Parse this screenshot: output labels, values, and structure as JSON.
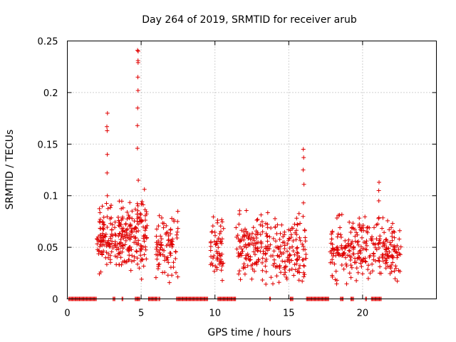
{
  "chart_data": {
    "type": "scatter",
    "title": "Day 264 of 2019, SRMTID for receiver arub",
    "xlabel": "GPS time / hours",
    "ylabel": "SRMTID / TECUs",
    "xlim": [
      0,
      25
    ],
    "ylim": [
      0,
      0.25
    ],
    "xticks": [
      0,
      5,
      10,
      15,
      20
    ],
    "yticks": [
      0,
      0.05,
      0.1,
      0.15,
      0.2,
      0.25
    ],
    "xtick_labels": [
      "0",
      "5",
      "10",
      "15",
      "20"
    ],
    "ytick_labels": [
      "0",
      "0.05",
      "0.1",
      "0.15",
      "0.2",
      "0.25"
    ],
    "grid": true,
    "marker": "+",
    "color": "#e00000",
    "clusters": [
      {
        "x": [
          2.0,
          3.1
        ],
        "y_center": 0.06,
        "y_spread": 0.03,
        "n": 90
      },
      {
        "x": [
          3.2,
          4.4
        ],
        "y_center": 0.06,
        "y_spread": 0.03,
        "n": 110
      },
      {
        "x": [
          4.5,
          5.4
        ],
        "y_center": 0.065,
        "y_spread": 0.035,
        "n": 80
      },
      {
        "x": [
          6.0,
          7.5
        ],
        "y_center": 0.05,
        "y_spread": 0.025,
        "n": 90
      },
      {
        "x": [
          9.7,
          10.6
        ],
        "y_center": 0.05,
        "y_spread": 0.03,
        "n": 60
      },
      {
        "x": [
          11.3,
          13.3
        ],
        "y_center": 0.05,
        "y_spread": 0.03,
        "n": 120
      },
      {
        "x": [
          13.4,
          15.6
        ],
        "y_center": 0.045,
        "y_spread": 0.03,
        "n": 120
      },
      {
        "x": [
          15.5,
          16.2
        ],
        "y_center": 0.05,
        "y_spread": 0.035,
        "n": 40
      },
      {
        "x": [
          17.8,
          19.8
        ],
        "y_center": 0.05,
        "y_spread": 0.03,
        "n": 120
      },
      {
        "x": [
          19.8,
          21.5
        ],
        "y_center": 0.05,
        "y_spread": 0.03,
        "n": 90
      },
      {
        "x": [
          21.5,
          22.6
        ],
        "y_center": 0.045,
        "y_spread": 0.025,
        "n": 70
      }
    ],
    "spikes": [
      {
        "x": 2.7,
        "y": [
          0.1,
          0.122,
          0.14,
          0.163,
          0.167,
          0.18
        ]
      },
      {
        "x": 4.78,
        "y": [
          0.115,
          0.146,
          0.168,
          0.185,
          0.202,
          0.215,
          0.229,
          0.231,
          0.24,
          0.241
        ]
      },
      {
        "x": 16.0,
        "y": [
          0.08,
          0.093,
          0.111,
          0.125,
          0.137,
          0.145
        ]
      },
      {
        "x": 21.1,
        "y": [
          0.095,
          0.105,
          0.113
        ]
      }
    ],
    "zero_segments": [
      [
        0.1,
        2.0
      ],
      [
        3.1,
        3.25
      ],
      [
        3.7,
        3.8
      ],
      [
        4.6,
        4.9
      ],
      [
        5.5,
        6.1
      ],
      [
        6.2,
        6.3
      ],
      [
        7.4,
        9.5
      ],
      [
        10.2,
        11.4
      ],
      [
        13.7,
        13.8
      ],
      [
        15.1,
        15.3
      ],
      [
        16.2,
        17.7
      ],
      [
        18.5,
        18.7
      ],
      [
        19.2,
        19.4
      ],
      [
        20.2,
        20.3
      ],
      [
        20.6,
        21.3
      ]
    ]
  }
}
